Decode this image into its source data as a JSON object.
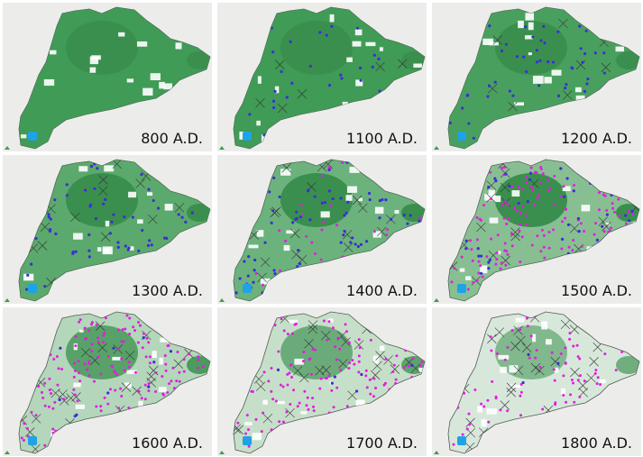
{
  "panels": [
    {
      "label": "800 A.D."
    },
    {
      "label": "1100 A.D."
    },
    {
      "label": "1200 A.D."
    },
    {
      "label": "1300 A.D."
    },
    {
      "label": "1400 A.D."
    },
    {
      "label": "1500 A.D."
    },
    {
      "label": "1600 A.D."
    },
    {
      "label": "1700 A.D."
    },
    {
      "label": "1800 A.D."
    }
  ]
}
